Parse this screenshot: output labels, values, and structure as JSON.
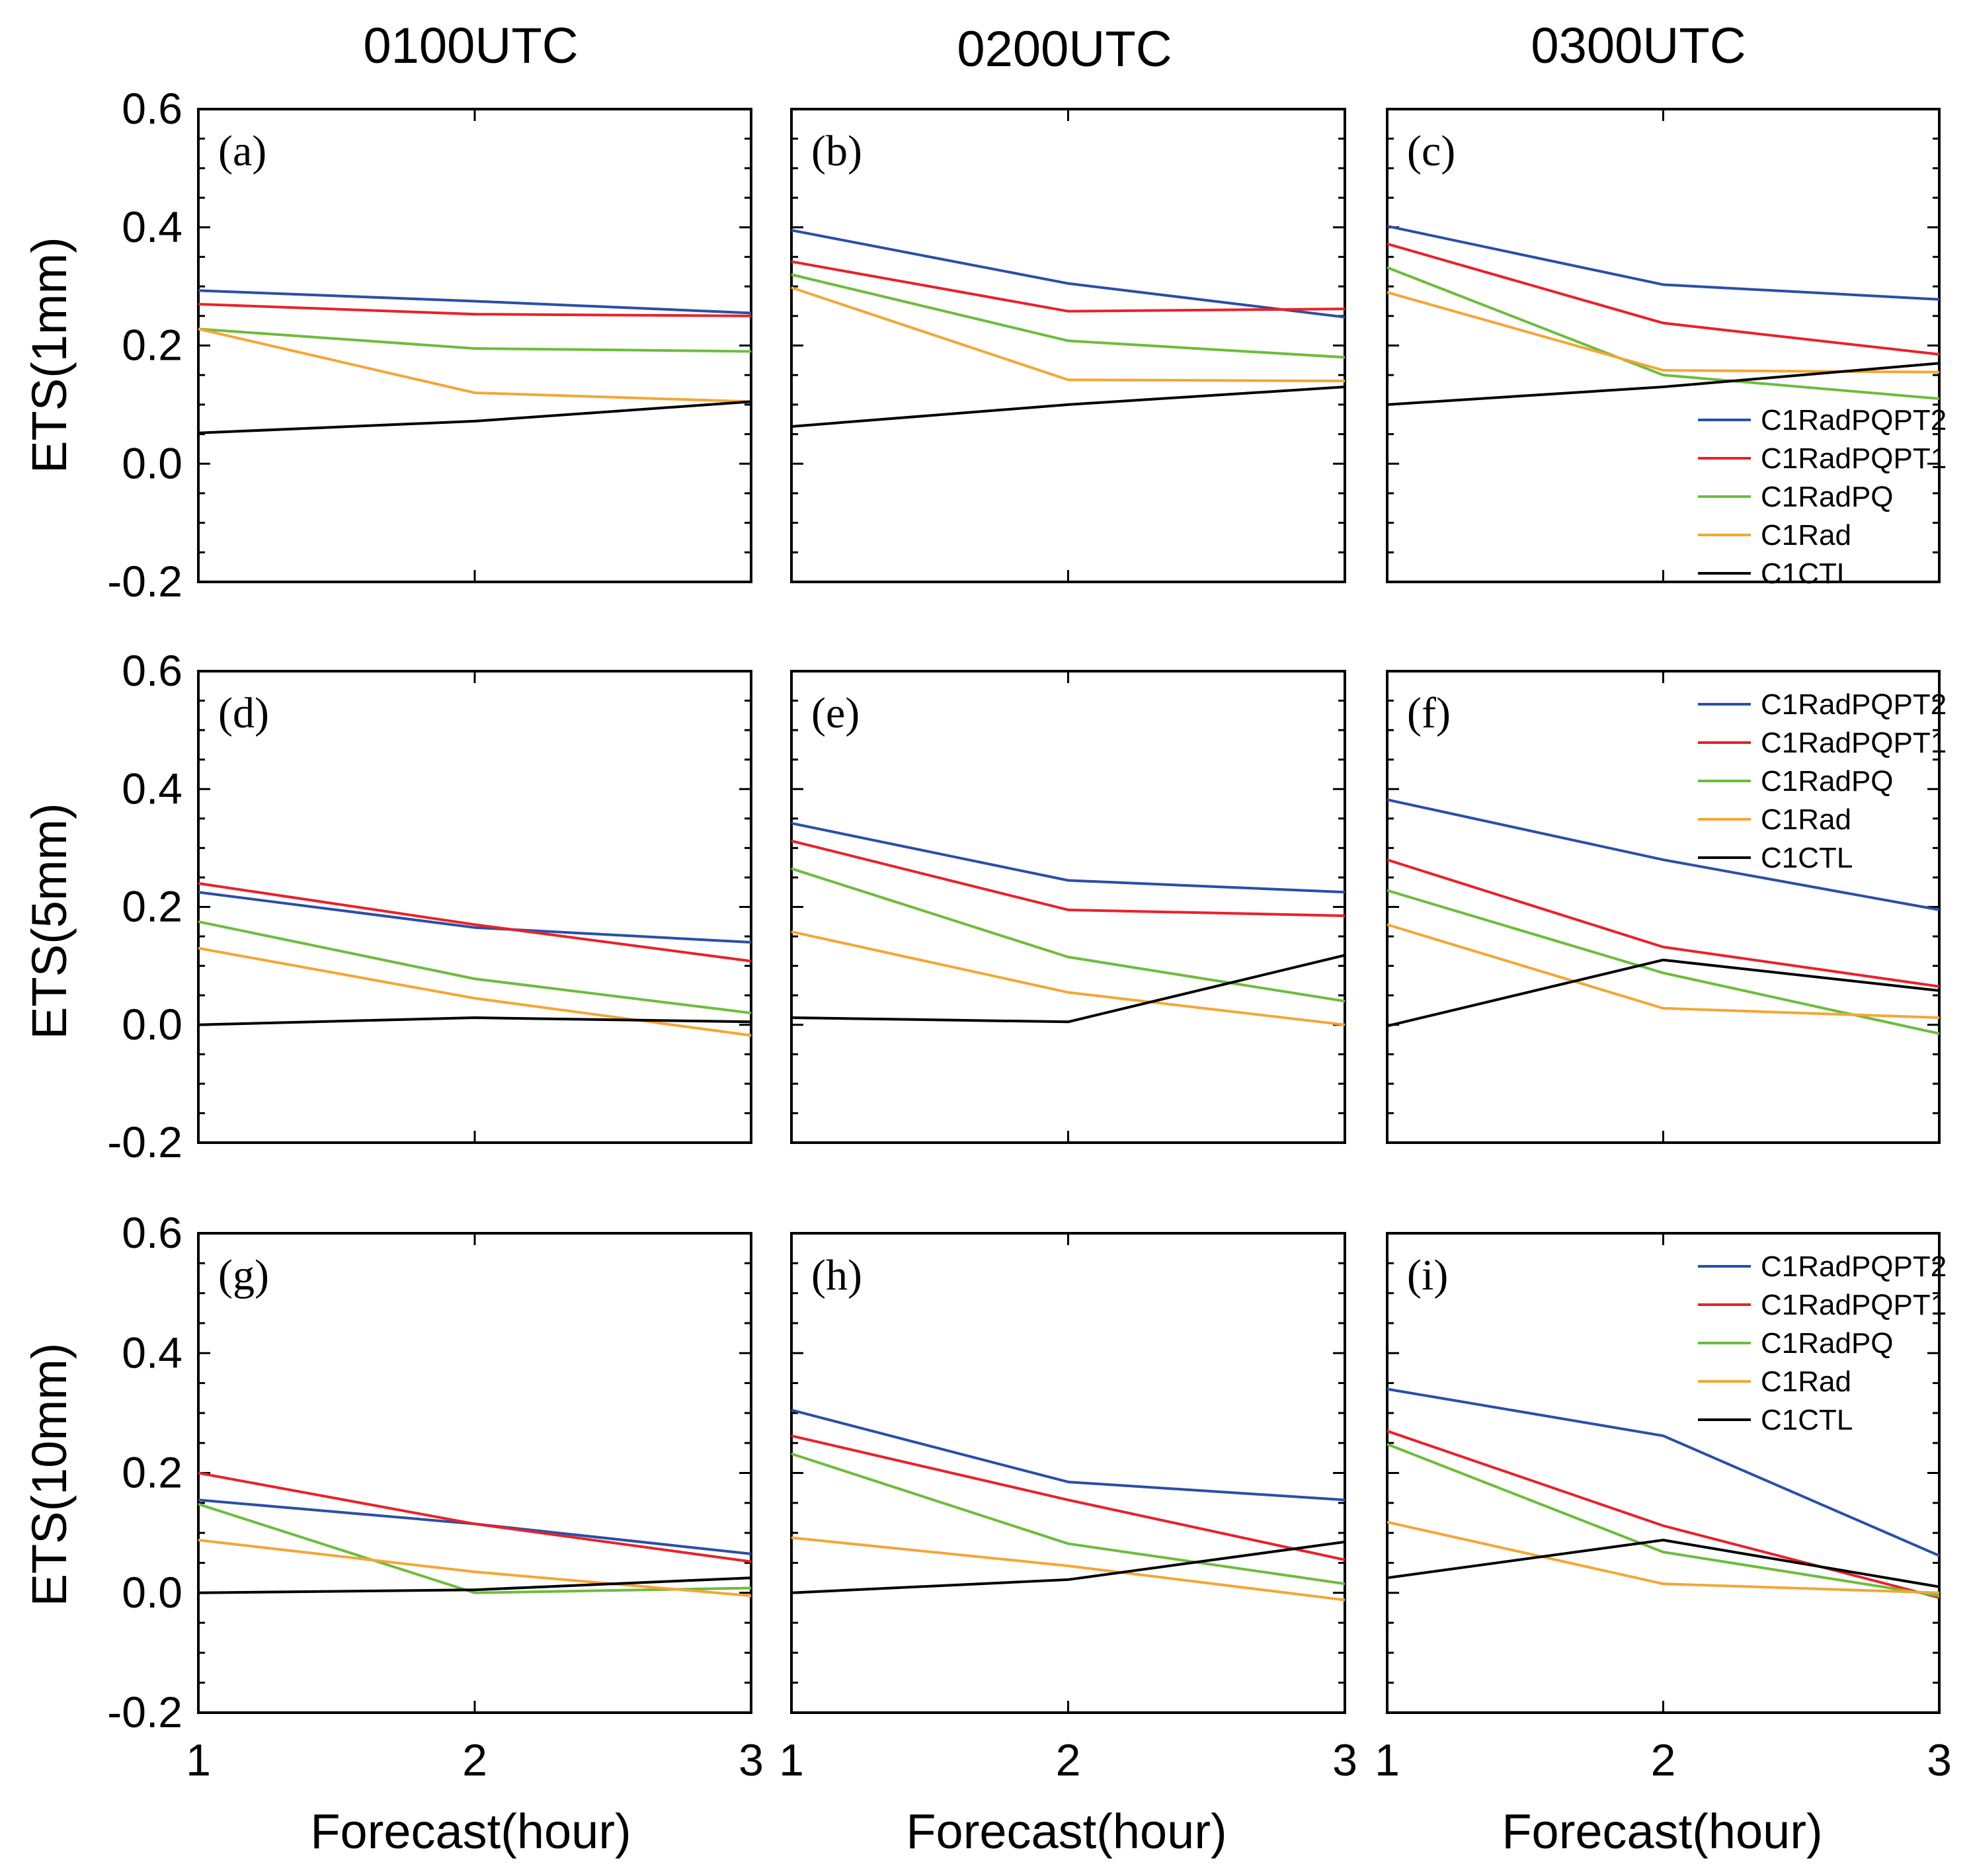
{
  "colors": {
    "C1RadPQPT2": "#2a4fa8",
    "C1RadPQPT1": "#e8222a",
    "C1RadPQ": "#6cbd3b",
    "C1Rad": "#f4a636",
    "C1CTL": "#000000"
  },
  "chart_data": {
    "type": "line",
    "x": [
      1,
      2,
      3
    ],
    "ylim": [
      -0.2,
      0.6
    ],
    "yticks": [
      "0.6",
      "0.4",
      "0.2",
      "0.0",
      "-0.2"
    ],
    "xticks": [
      "1",
      "2",
      "3"
    ],
    "xlabel": "Forecast(hour)",
    "column_titles": [
      "0100UTC",
      "0200UTC",
      "0300UTC"
    ],
    "row_ylabels": [
      "ETS(1mm)",
      "ETS(5mm)",
      "ETS(10mm)"
    ],
    "legend_order": [
      "C1RadPQPT2",
      "C1RadPQPT1",
      "C1RadPQ",
      "C1Rad",
      "C1CTL"
    ],
    "panels": [
      {
        "label": "(a)",
        "series": [
          {
            "name": "C1RadPQPT2",
            "values": [
              0.293,
              0.275,
              0.255
            ]
          },
          {
            "name": "C1RadPQPT1",
            "values": [
              0.27,
              0.253,
              0.25
            ]
          },
          {
            "name": "C1RadPQ",
            "values": [
              0.228,
              0.195,
              0.19
            ]
          },
          {
            "name": "C1Rad",
            "values": [
              0.228,
              0.12,
              0.105
            ]
          },
          {
            "name": "C1CTL",
            "values": [
              0.052,
              0.072,
              0.105
            ]
          }
        ]
      },
      {
        "label": "(b)",
        "series": [
          {
            "name": "C1RadPQPT2",
            "values": [
              0.395,
              0.305,
              0.248
            ]
          },
          {
            "name": "C1RadPQPT1",
            "values": [
              0.342,
              0.258,
              0.262
            ]
          },
          {
            "name": "C1RadPQ",
            "values": [
              0.32,
              0.208,
              0.18
            ]
          },
          {
            "name": "C1Rad",
            "values": [
              0.298,
              0.142,
              0.14
            ]
          },
          {
            "name": "C1CTL",
            "values": [
              0.063,
              0.1,
              0.13
            ]
          }
        ]
      },
      {
        "label": "(c)",
        "series": [
          {
            "name": "C1RadPQPT2",
            "values": [
              0.402,
              0.303,
              0.278
            ]
          },
          {
            "name": "C1RadPQPT1",
            "values": [
              0.372,
              0.238,
              0.185
            ]
          },
          {
            "name": "C1RadPQ",
            "values": [
              0.332,
              0.15,
              0.11
            ]
          },
          {
            "name": "C1Rad",
            "values": [
              0.29,
              0.158,
              0.155
            ]
          },
          {
            "name": "C1CTL",
            "values": [
              0.1,
              0.13,
              0.17
            ]
          }
        ]
      },
      {
        "label": "(d)",
        "series": [
          {
            "name": "C1RadPQPT2",
            "values": [
              0.225,
              0.165,
              0.14
            ]
          },
          {
            "name": "C1RadPQPT1",
            "values": [
              0.24,
              0.17,
              0.108
            ]
          },
          {
            "name": "C1RadPQ",
            "values": [
              0.175,
              0.078,
              0.02
            ]
          },
          {
            "name": "C1Rad",
            "values": [
              0.13,
              0.045,
              -0.018
            ]
          },
          {
            "name": "C1CTL",
            "values": [
              0.0,
              0.012,
              0.005
            ]
          }
        ]
      },
      {
        "label": "(e)",
        "series": [
          {
            "name": "C1RadPQPT2",
            "values": [
              0.342,
              0.245,
              0.225
            ]
          },
          {
            "name": "C1RadPQPT1",
            "values": [
              0.312,
              0.195,
              0.185
            ]
          },
          {
            "name": "C1RadPQ",
            "values": [
              0.265,
              0.115,
              0.04
            ]
          },
          {
            "name": "C1Rad",
            "values": [
              0.158,
              0.055,
              0.0
            ]
          },
          {
            "name": "C1CTL",
            "values": [
              0.012,
              0.005,
              0.118
            ]
          }
        ]
      },
      {
        "label": "(f)",
        "series": [
          {
            "name": "C1RadPQPT2",
            "values": [
              0.382,
              0.28,
              0.195
            ]
          },
          {
            "name": "C1RadPQPT1",
            "values": [
              0.28,
              0.132,
              0.065
            ]
          },
          {
            "name": "C1RadPQ",
            "values": [
              0.228,
              0.088,
              -0.015
            ]
          },
          {
            "name": "C1Rad",
            "values": [
              0.17,
              0.028,
              0.012
            ]
          },
          {
            "name": "C1CTL",
            "values": [
              -0.002,
              0.11,
              0.058
            ]
          }
        ]
      },
      {
        "label": "(g)",
        "series": [
          {
            "name": "C1RadPQPT2",
            "values": [
              0.155,
              0.115,
              0.065
            ]
          },
          {
            "name": "C1RadPQPT1",
            "values": [
              0.2,
              0.115,
              0.052
            ]
          },
          {
            "name": "C1RadPQ",
            "values": [
              0.148,
              0.0,
              0.008
            ]
          },
          {
            "name": "C1Rad",
            "values": [
              0.088,
              0.035,
              -0.005
            ]
          },
          {
            "name": "C1CTL",
            "values": [
              0.0,
              0.005,
              0.025
            ]
          }
        ]
      },
      {
        "label": "(h)",
        "series": [
          {
            "name": "C1RadPQPT2",
            "values": [
              0.305,
              0.185,
              0.155
            ]
          },
          {
            "name": "C1RadPQPT1",
            "values": [
              0.262,
              0.155,
              0.055
            ]
          },
          {
            "name": "C1RadPQ",
            "values": [
              0.232,
              0.082,
              0.015
            ]
          },
          {
            "name": "C1Rad",
            "values": [
              0.092,
              0.045,
              -0.012
            ]
          },
          {
            "name": "C1CTL",
            "values": [
              0.0,
              0.022,
              0.085
            ]
          }
        ]
      },
      {
        "label": "(i)",
        "series": [
          {
            "name": "C1RadPQPT2",
            "values": [
              0.34,
              0.262,
              0.062
            ]
          },
          {
            "name": "C1RadPQPT1",
            "values": [
              0.27,
              0.112,
              -0.008
            ]
          },
          {
            "name": "C1RadPQ",
            "values": [
              0.248,
              0.068,
              -0.005
            ]
          },
          {
            "name": "C1Rad",
            "values": [
              0.118,
              0.015,
              0.0
            ]
          },
          {
            "name": "C1CTL",
            "values": [
              0.025,
              0.088,
              0.01
            ]
          }
        ]
      }
    ],
    "legend_panels": [
      "(c)",
      "(f)",
      "(i)"
    ]
  }
}
